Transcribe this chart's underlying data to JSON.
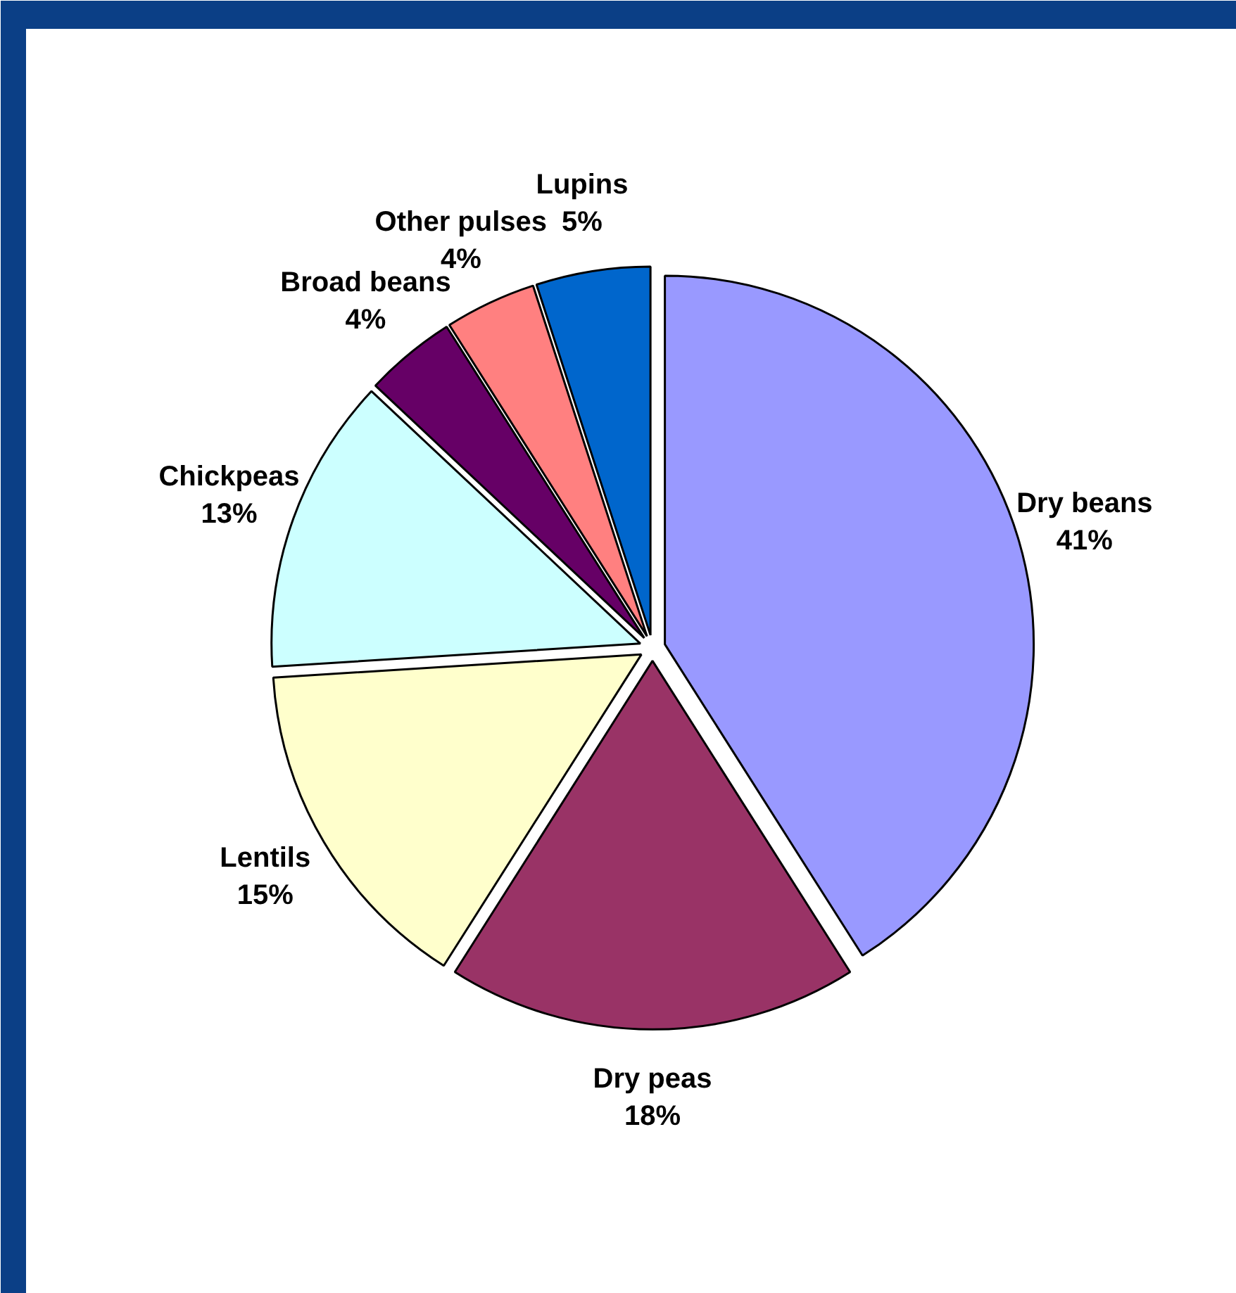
{
  "chart_data": {
    "type": "pie",
    "categories": [
      "Dry beans",
      "Dry peas",
      "Lentils",
      "Chickpeas",
      "Broad beans",
      "Other pulses",
      "Lupins"
    ],
    "values": [
      41,
      18,
      15,
      13,
      4,
      4,
      5
    ],
    "colors": [
      "#9999ff",
      "#993366",
      "#ffffcc",
      "#ccffff",
      "#660066",
      "#ff8080",
      "#0066cc"
    ],
    "value_labels": [
      "41%",
      "18%",
      "15%",
      "13%",
      "4%",
      "4%",
      "5%"
    ]
  }
}
